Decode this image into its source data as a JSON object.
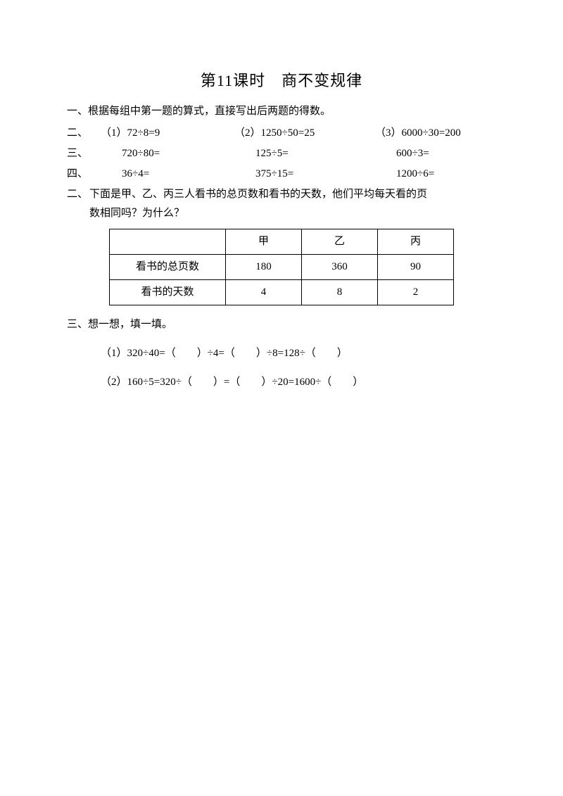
{
  "title": "第11课时　商不变规律",
  "q1": {
    "heading": "一、根据每组中第一题的算式，直接写出后两题的得数。",
    "row1": {
      "label": "二、",
      "c1": "（1）72÷8=9",
      "c2": "（2）1250÷50=25",
      "c3": "（3）6000÷30=200"
    },
    "row2": {
      "label": "三、",
      "c1": "　　720÷80=",
      "c2": "　　125÷5=",
      "c3": "　　600÷3="
    },
    "row3": {
      "label": "四、",
      "c1": "　　36÷4=",
      "c2": "　　375÷15=",
      "c3": "　　1200÷6="
    }
  },
  "q2": {
    "label": "二、",
    "text1": "下面是甲、乙、丙三人看书的总页数和看书的天数，他们平均每天看的页",
    "text2": "数相同吗？为什么？",
    "table": {
      "headers": [
        "",
        "甲",
        "乙",
        "丙"
      ],
      "rows": [
        [
          "看书的总页数",
          "180",
          "360",
          "90"
        ],
        [
          "看书的天数",
          "4",
          "8",
          "2"
        ]
      ]
    }
  },
  "q3": {
    "heading": "三、想一想，填一填。",
    "line1": "（1）320÷40=（　　）÷4=（　　）÷8=128÷（　　）",
    "line2": "（2）160÷5=320÷（　　）=（　　）÷20=1600÷（　　）"
  }
}
